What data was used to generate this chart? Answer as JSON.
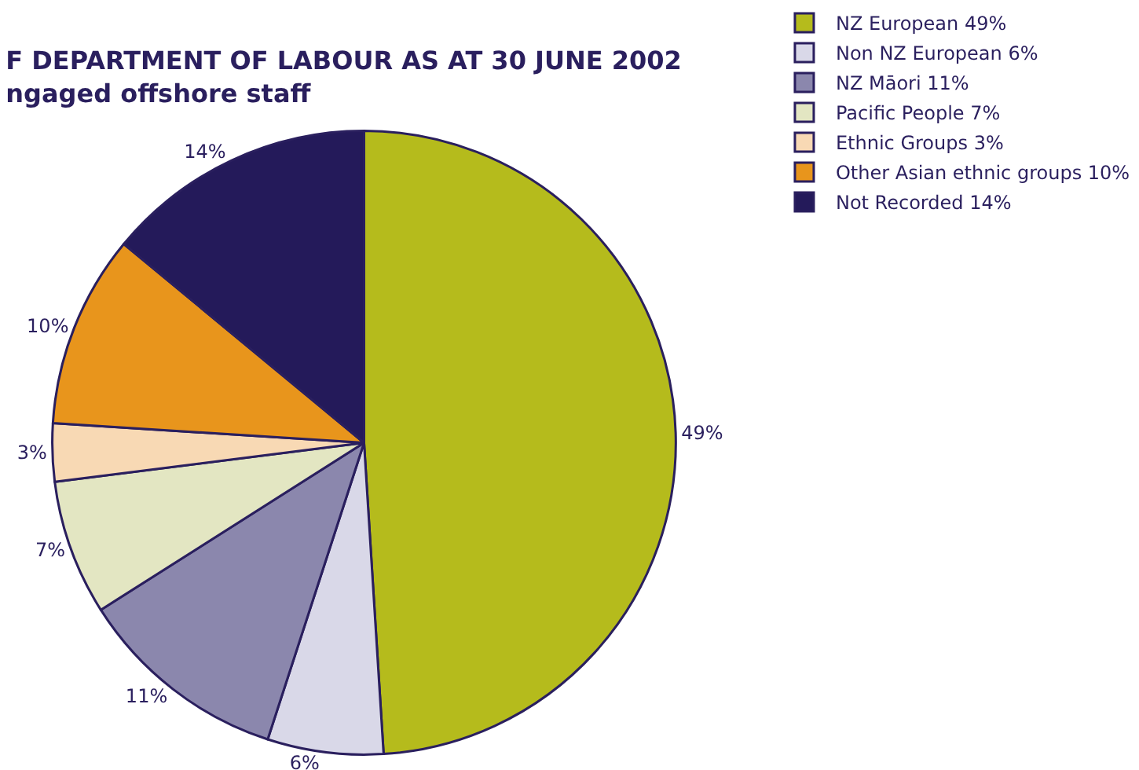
{
  "chart_data": {
    "type": "pie",
    "title": "F DEPARTMENT OF LABOUR AS AT 30 JUNE 2002",
    "subtitle": "ngaged offshore staff",
    "categories": [
      "NZ European 49%",
      "Non NZ European 6%",
      "NZ Māori 11%",
      "Pacific People 7%",
      "Ethnic Groups 3%",
      "Other Asian ethnic groups 10%",
      "Not Recorded 14%"
    ],
    "values": [
      49,
      6,
      11,
      7,
      3,
      10,
      14
    ],
    "value_labels": [
      "49%",
      "6%",
      "11%",
      "7%",
      "3%",
      "10%",
      "14%"
    ],
    "colors": [
      "#b5bb1c",
      "#d9d8e8",
      "#8b87ad",
      "#e3e6c2",
      "#f8d9b4",
      "#e8951c",
      "#241a5a"
    ],
    "legend": "top right"
  }
}
